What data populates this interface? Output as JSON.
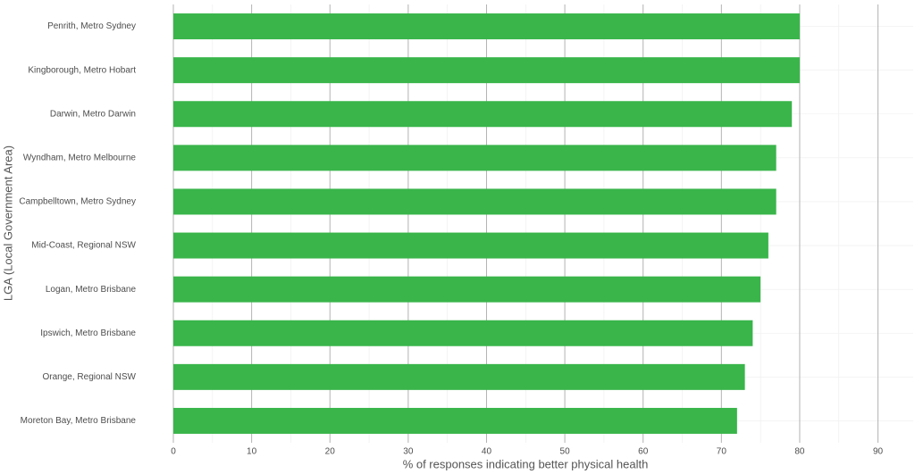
{
  "chart_data": {
    "type": "bar",
    "orientation": "horizontal",
    "x_label": "% of responses indicating better physical health",
    "y_label": "LGA (Local Government Area)",
    "categories": [
      "Penrith, Metro Sydney",
      "Kingborough, Metro Hobart",
      "Darwin, Metro Darwin",
      "Wyndham, Metro Melbourne",
      "Campbelltown, Metro Sydney",
      "Mid-Coast, Regional NSW",
      "Logan, Metro Brisbane",
      "Ipswich, Metro Brisbane",
      "Orange, Regional NSW",
      "Moreton Bay, Metro Brisbane"
    ],
    "values": [
      80,
      80,
      79,
      77,
      77,
      76,
      75,
      74,
      73,
      72
    ],
    "color": "#39b54a",
    "xlim": [
      0,
      94.5
    ],
    "xticks": [
      0,
      10,
      20,
      30,
      40,
      50,
      60,
      70,
      80,
      90
    ],
    "grid": true
  }
}
